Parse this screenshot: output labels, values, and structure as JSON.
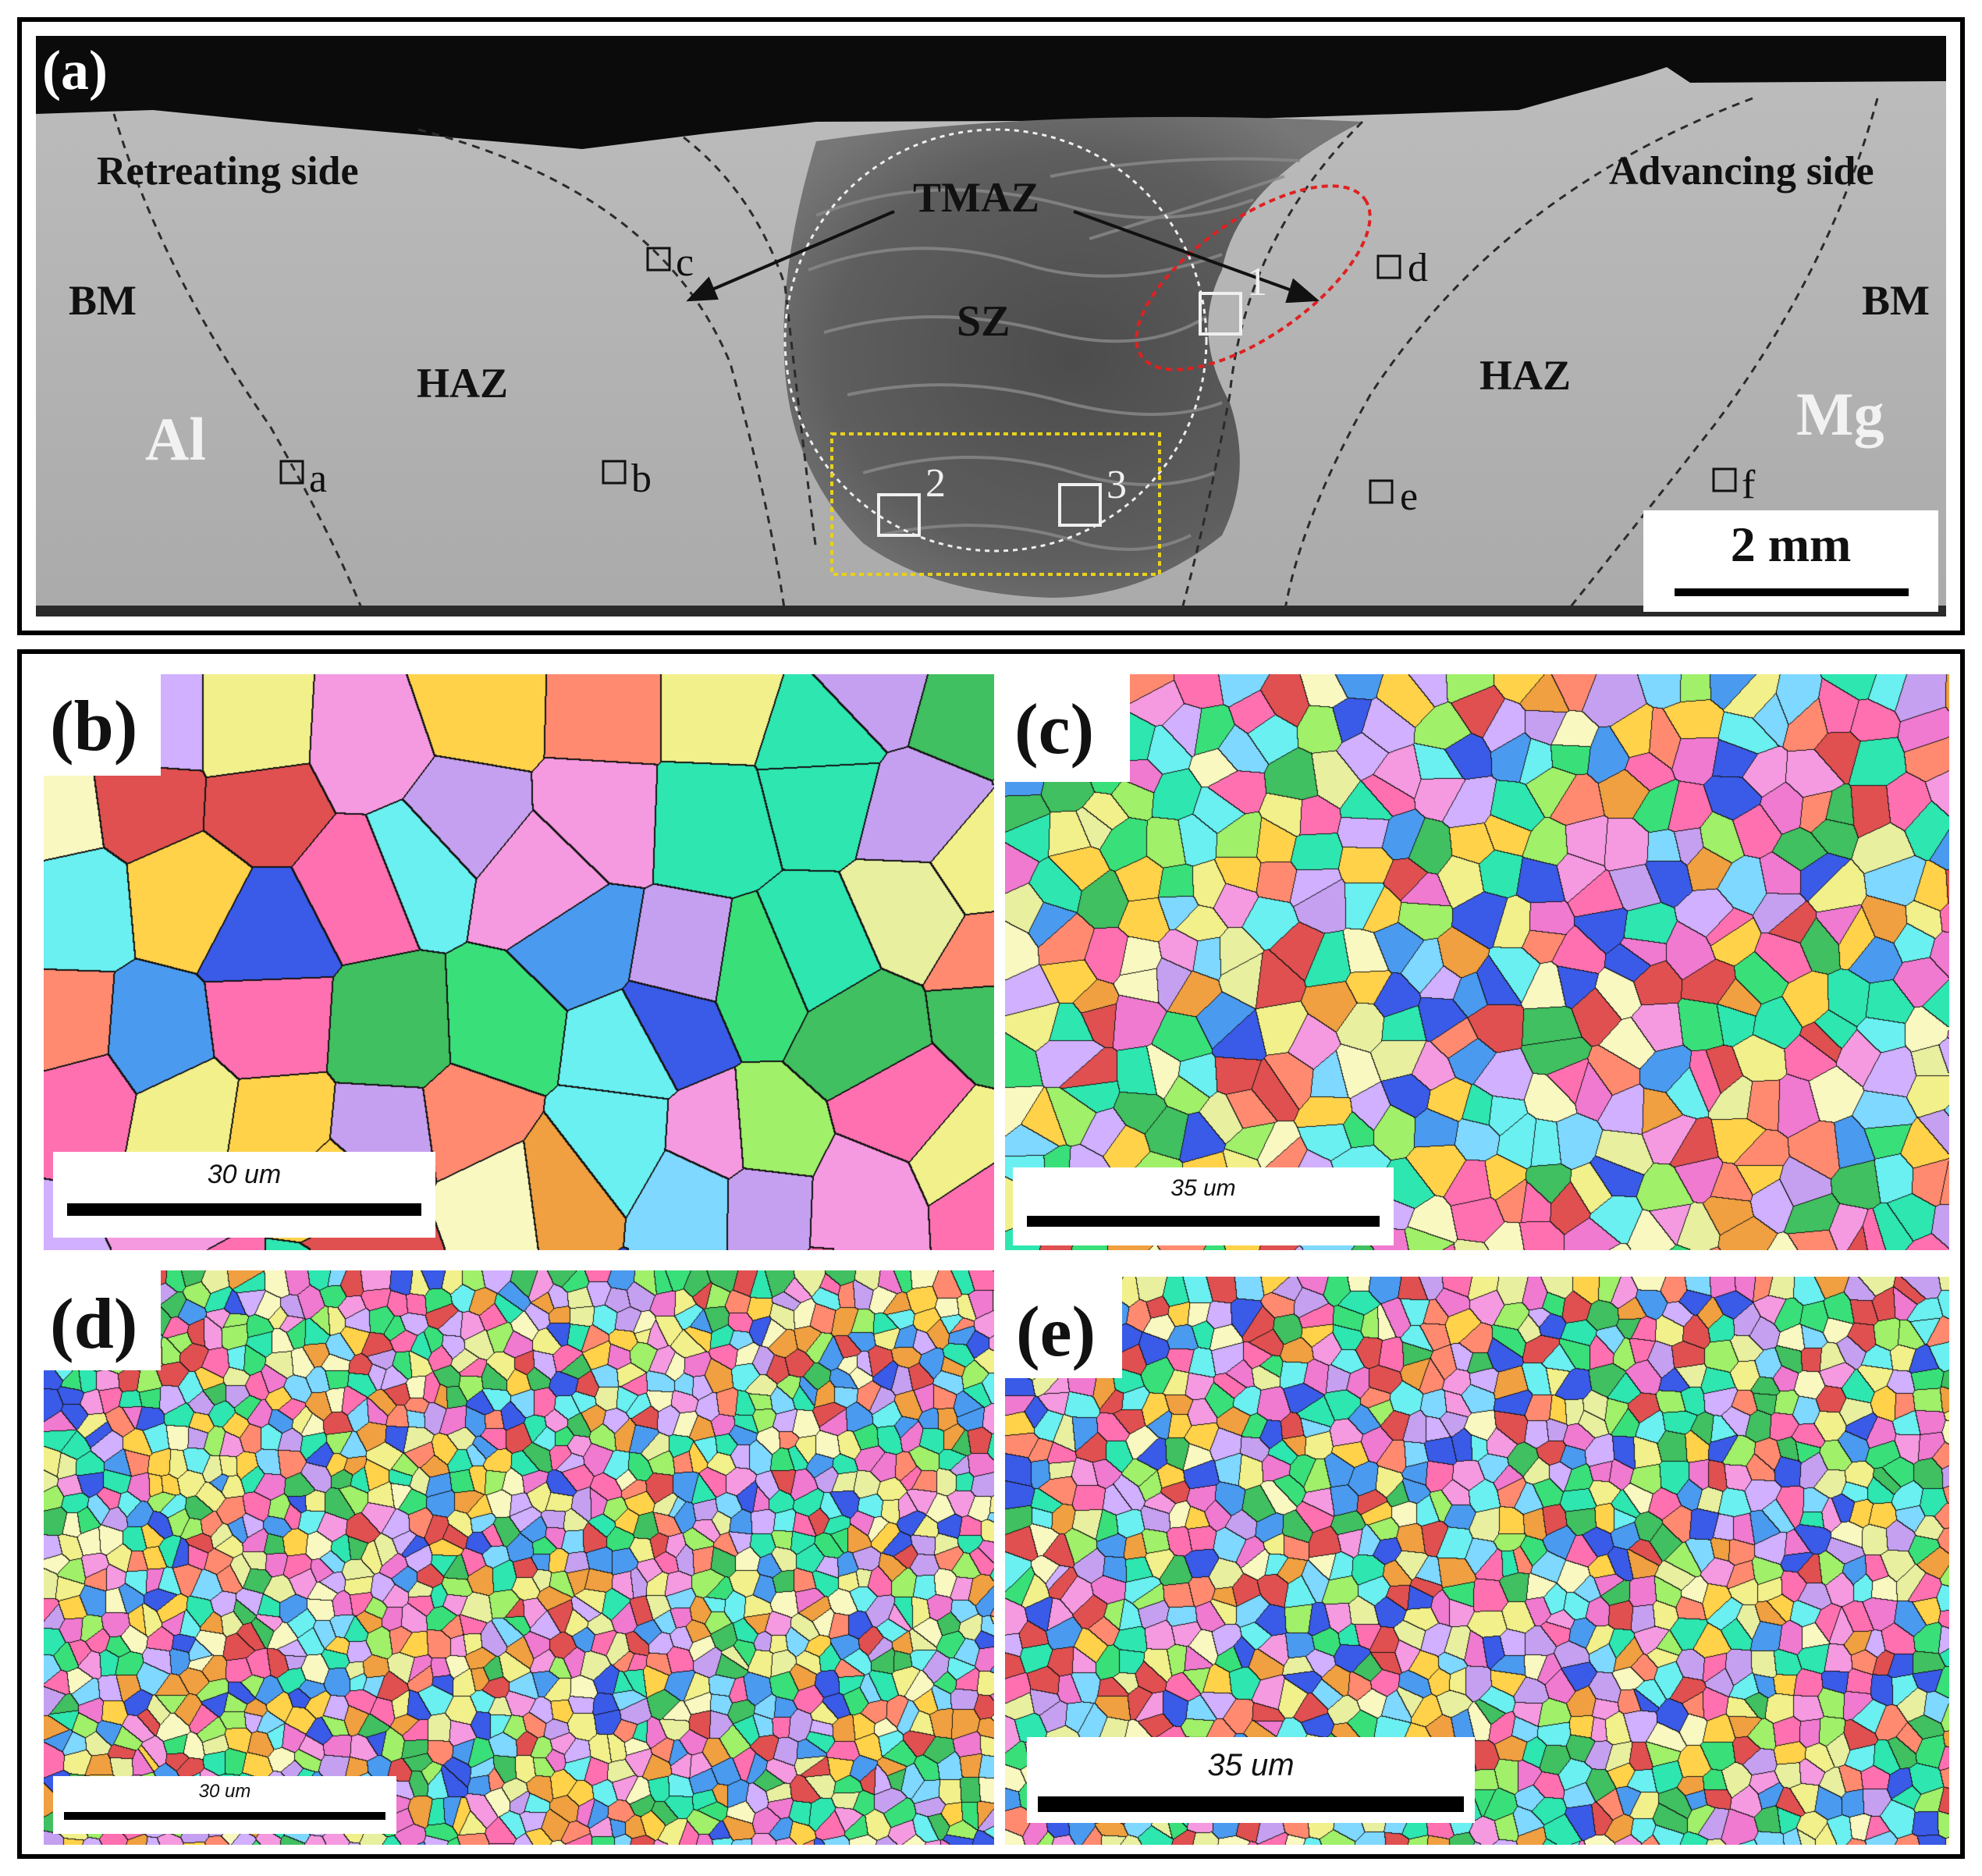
{
  "panel_a": {
    "letter": "(a)",
    "regions": {
      "retreating": "Retreating side",
      "advancing": "Advancing side",
      "bm_left": "BM",
      "bm_right": "BM",
      "haz_left": "HAZ",
      "haz_right": "HAZ",
      "tmaz": "TMAZ",
      "sz": "SZ",
      "al": "Al",
      "mg": "Mg"
    },
    "boxes": [
      "a",
      "b",
      "c",
      "d",
      "e",
      "f"
    ],
    "numbers": [
      "1",
      "2",
      "3"
    ],
    "scale_label": "2 mm"
  },
  "panels": [
    {
      "letter": "(b)",
      "scale_label": "30 um"
    },
    {
      "letter": "(c)",
      "scale_label": "35 um"
    },
    {
      "letter": "(d)",
      "scale_label": "30 um"
    },
    {
      "letter": "(e)",
      "scale_label": "35 um"
    }
  ],
  "colors": {
    "frame": "#000000",
    "red_ellipse": "#e02020",
    "yellow_box": "#e8d21a"
  }
}
